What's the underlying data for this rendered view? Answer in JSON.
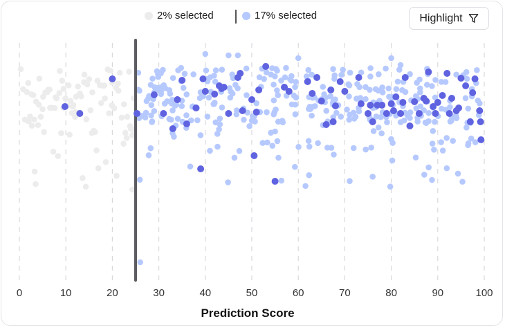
{
  "legend": {
    "unselected_label": "2% selected",
    "selected_label": "17% selected"
  },
  "toolbar": {
    "highlight_label": "Highlight",
    "highlight_icon": "filter-icon"
  },
  "colors": {
    "unselected": "#ececec",
    "selected": "#b6c9ff",
    "highlighted": "#5f63e0",
    "threshold": "#5c5c62",
    "grid": "#d9d9de",
    "text": "#222222"
  },
  "chart_data": {
    "type": "scatter",
    "title": "",
    "xlabel": "Prediction Score",
    "ylabel": "",
    "xlim": [
      0,
      100
    ],
    "x_ticks": [
      0,
      10,
      20,
      30,
      40,
      50,
      60,
      70,
      80,
      90,
      100
    ],
    "grid": "vertical-dashed",
    "threshold": 25,
    "jitter_seed": 7,
    "series": [
      {
        "name": "2% selected",
        "style": "unselected",
        "x": [
          0.3,
          0.8,
          1.2,
          1.6,
          2.0,
          2.3,
          2.7,
          3.0,
          3.3,
          3.6,
          4.0,
          4.2,
          4.6,
          5.0,
          5.3,
          5.6,
          6.0,
          6.2,
          6.5,
          7.0,
          7.3,
          7.6,
          8.0,
          8.3,
          8.6,
          9.0,
          9.2,
          9.5,
          9.9,
          10.3,
          10.6,
          11.0,
          11.3,
          11.6,
          12.0,
          12.2,
          12.6,
          13.0,
          13.3,
          13.6,
          14.0,
          14.3,
          14.6,
          15.0,
          15.3,
          15.6,
          16.0,
          16.3,
          16.6,
          17.0,
          17.3,
          17.6,
          18.0,
          18.3,
          18.6,
          19.0,
          19.3,
          19.6,
          20.0,
          20.4,
          20.8,
          21.2,
          21.6,
          22.0,
          22.4,
          22.8,
          23.2,
          23.6,
          24.0,
          24.3,
          24.6,
          3.2,
          5.1,
          7.8,
          9.5,
          12.1,
          15.7,
          18.4,
          21.3,
          23.1,
          24.4,
          1.9,
          4.3,
          6.6,
          10.8,
          13.9,
          16.8,
          19.9,
          22.5,
          2.6,
          8.7,
          11.5,
          14.4,
          17.9,
          20.9,
          23.8
        ],
        "y_fixed": {
          "0": null
        }
      },
      {
        "name": "17% selected",
        "style": "selected",
        "x_range": [
          25.5,
          99.5
        ],
        "count": 370
      },
      {
        "name": "highlighted",
        "style": "highlighted",
        "points": [
          [
            9.8,
            154
          ],
          [
            13,
            164
          ],
          [
            20,
            114
          ],
          [
            25.3,
            164
          ],
          [
            29,
            137
          ],
          [
            31,
            164
          ],
          [
            33,
            186
          ],
          [
            34,
            144
          ],
          [
            35,
            116
          ],
          [
            36,
            179
          ],
          [
            38,
            156
          ],
          [
            39,
            244
          ],
          [
            39.5,
            114
          ],
          [
            40,
            132
          ],
          [
            42,
            136
          ],
          [
            43,
            124
          ],
          [
            43.5,
            128
          ],
          [
            44,
            126
          ],
          [
            45,
            164
          ],
          [
            47,
            112
          ],
          [
            47.5,
            106
          ],
          [
            48,
            160
          ],
          [
            50,
            144
          ],
          [
            50.5,
            225
          ],
          [
            51,
            162
          ],
          [
            51.5,
            130
          ],
          [
            53,
            96
          ],
          [
            55,
            262
          ],
          [
            57,
            126
          ],
          [
            58,
            132
          ],
          [
            62,
            118
          ],
          [
            63,
            135
          ],
          [
            64,
            112
          ],
          [
            65,
            146
          ],
          [
            66,
            180
          ],
          [
            67,
            130
          ],
          [
            67.5,
            176
          ],
          [
            68,
            153
          ],
          [
            69,
            118
          ],
          [
            70,
            132
          ],
          [
            73,
            112
          ],
          [
            73.5,
            150
          ],
          [
            75,
            164
          ],
          [
            75.5,
            152
          ],
          [
            76,
            176
          ],
          [
            77,
            152
          ],
          [
            78,
            152
          ],
          [
            79,
            164
          ],
          [
            80,
            150
          ],
          [
            80.5,
            160
          ],
          [
            81,
            140
          ],
          [
            82,
            164
          ],
          [
            82.5,
            148
          ],
          [
            83,
            112
          ],
          [
            84,
            182
          ],
          [
            85,
            147
          ],
          [
            86,
            164
          ],
          [
            87,
            142
          ],
          [
            87.5,
            146
          ],
          [
            88,
            104
          ],
          [
            89,
            154
          ],
          [
            89.5,
            164
          ],
          [
            90,
            148
          ],
          [
            91,
            138
          ],
          [
            92,
            106
          ],
          [
            92.5,
            164
          ],
          [
            93,
            142
          ],
          [
            94,
            160
          ],
          [
            94.5,
            156
          ],
          [
            95,
            113
          ],
          [
            96,
            124
          ],
          [
            97,
            176
          ],
          [
            97.5,
            134
          ],
          [
            98,
            114
          ],
          [
            99,
            160
          ],
          [
            99.2,
            176
          ],
          [
            99.3,
            202
          ]
        ]
      }
    ]
  },
  "axis": {
    "x_title": "Prediction Score"
  }
}
